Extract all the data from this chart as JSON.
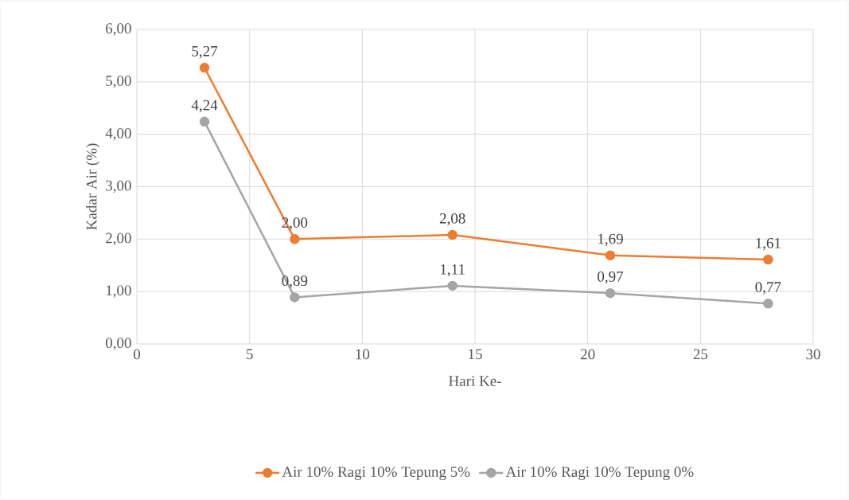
{
  "chart_data": {
    "type": "line",
    "xlabel": "Hari Ke-",
    "ylabel": "Kadar Air (%)",
    "x": [
      3,
      7,
      14,
      21,
      28
    ],
    "series": [
      {
        "name": "Air 10% Ragi 10% Tepung 5%",
        "color": "#ed7d31",
        "values": [
          5.27,
          2.0,
          2.08,
          1.69,
          1.61
        ],
        "value_labels": [
          "5,27",
          "2,00",
          "2,08",
          "1,69",
          "1,61"
        ]
      },
      {
        "name": "Air 10% Ragi 10% Tepung 0%",
        "color": "#a5a5a5",
        "values": [
          4.24,
          0.89,
          1.11,
          0.97,
          0.77
        ],
        "value_labels": [
          "4,24",
          "0,89",
          "1,11",
          "0,97",
          "0,77"
        ]
      }
    ],
    "xlim": [
      0,
      30
    ],
    "xticks": [
      0,
      5,
      10,
      15,
      20,
      25,
      30
    ],
    "ylim": [
      0,
      6
    ],
    "yticks": [
      {
        "value": 0,
        "label": "0,00"
      },
      {
        "value": 1,
        "label": "1,00"
      },
      {
        "value": 2,
        "label": "2,00"
      },
      {
        "value": 3,
        "label": "3,00"
      },
      {
        "value": 4,
        "label": "4,00"
      },
      {
        "value": 5,
        "label": "5,00"
      },
      {
        "value": 6,
        "label": "6,00"
      }
    ],
    "grid": true,
    "legend": "bottom",
    "marker": "circle",
    "line_style": "solid"
  }
}
